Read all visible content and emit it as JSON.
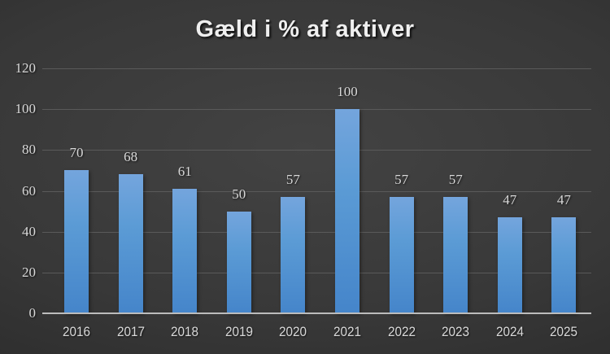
{
  "chart_data": {
    "type": "bar",
    "title": "Gæld i % af aktiver",
    "categories": [
      "2016",
      "2017",
      "2018",
      "2019",
      "2020",
      "2021",
      "2022",
      "2023",
      "2024",
      "2025"
    ],
    "values": [
      70,
      68,
      61,
      50,
      57,
      100,
      57,
      57,
      47,
      47
    ],
    "xlabel": "",
    "ylabel": "",
    "ylim": [
      0,
      120
    ],
    "yticks": [
      0,
      20,
      40,
      60,
      80,
      100,
      120
    ],
    "grid": true,
    "legend": "none",
    "data_labels_shown": true,
    "colors": {
      "bar_top": "#74a5dd",
      "bar_mid": "#5b9bd5",
      "bar_bottom": "#4585ca",
      "background_center": "#434343",
      "background_mid": "#383838",
      "background_edge": "#262626",
      "gridline": "#5a5a5a",
      "axis_line": "#bcbcbc",
      "label_text": "#d9d9d9",
      "title_text": "#efefef"
    }
  }
}
